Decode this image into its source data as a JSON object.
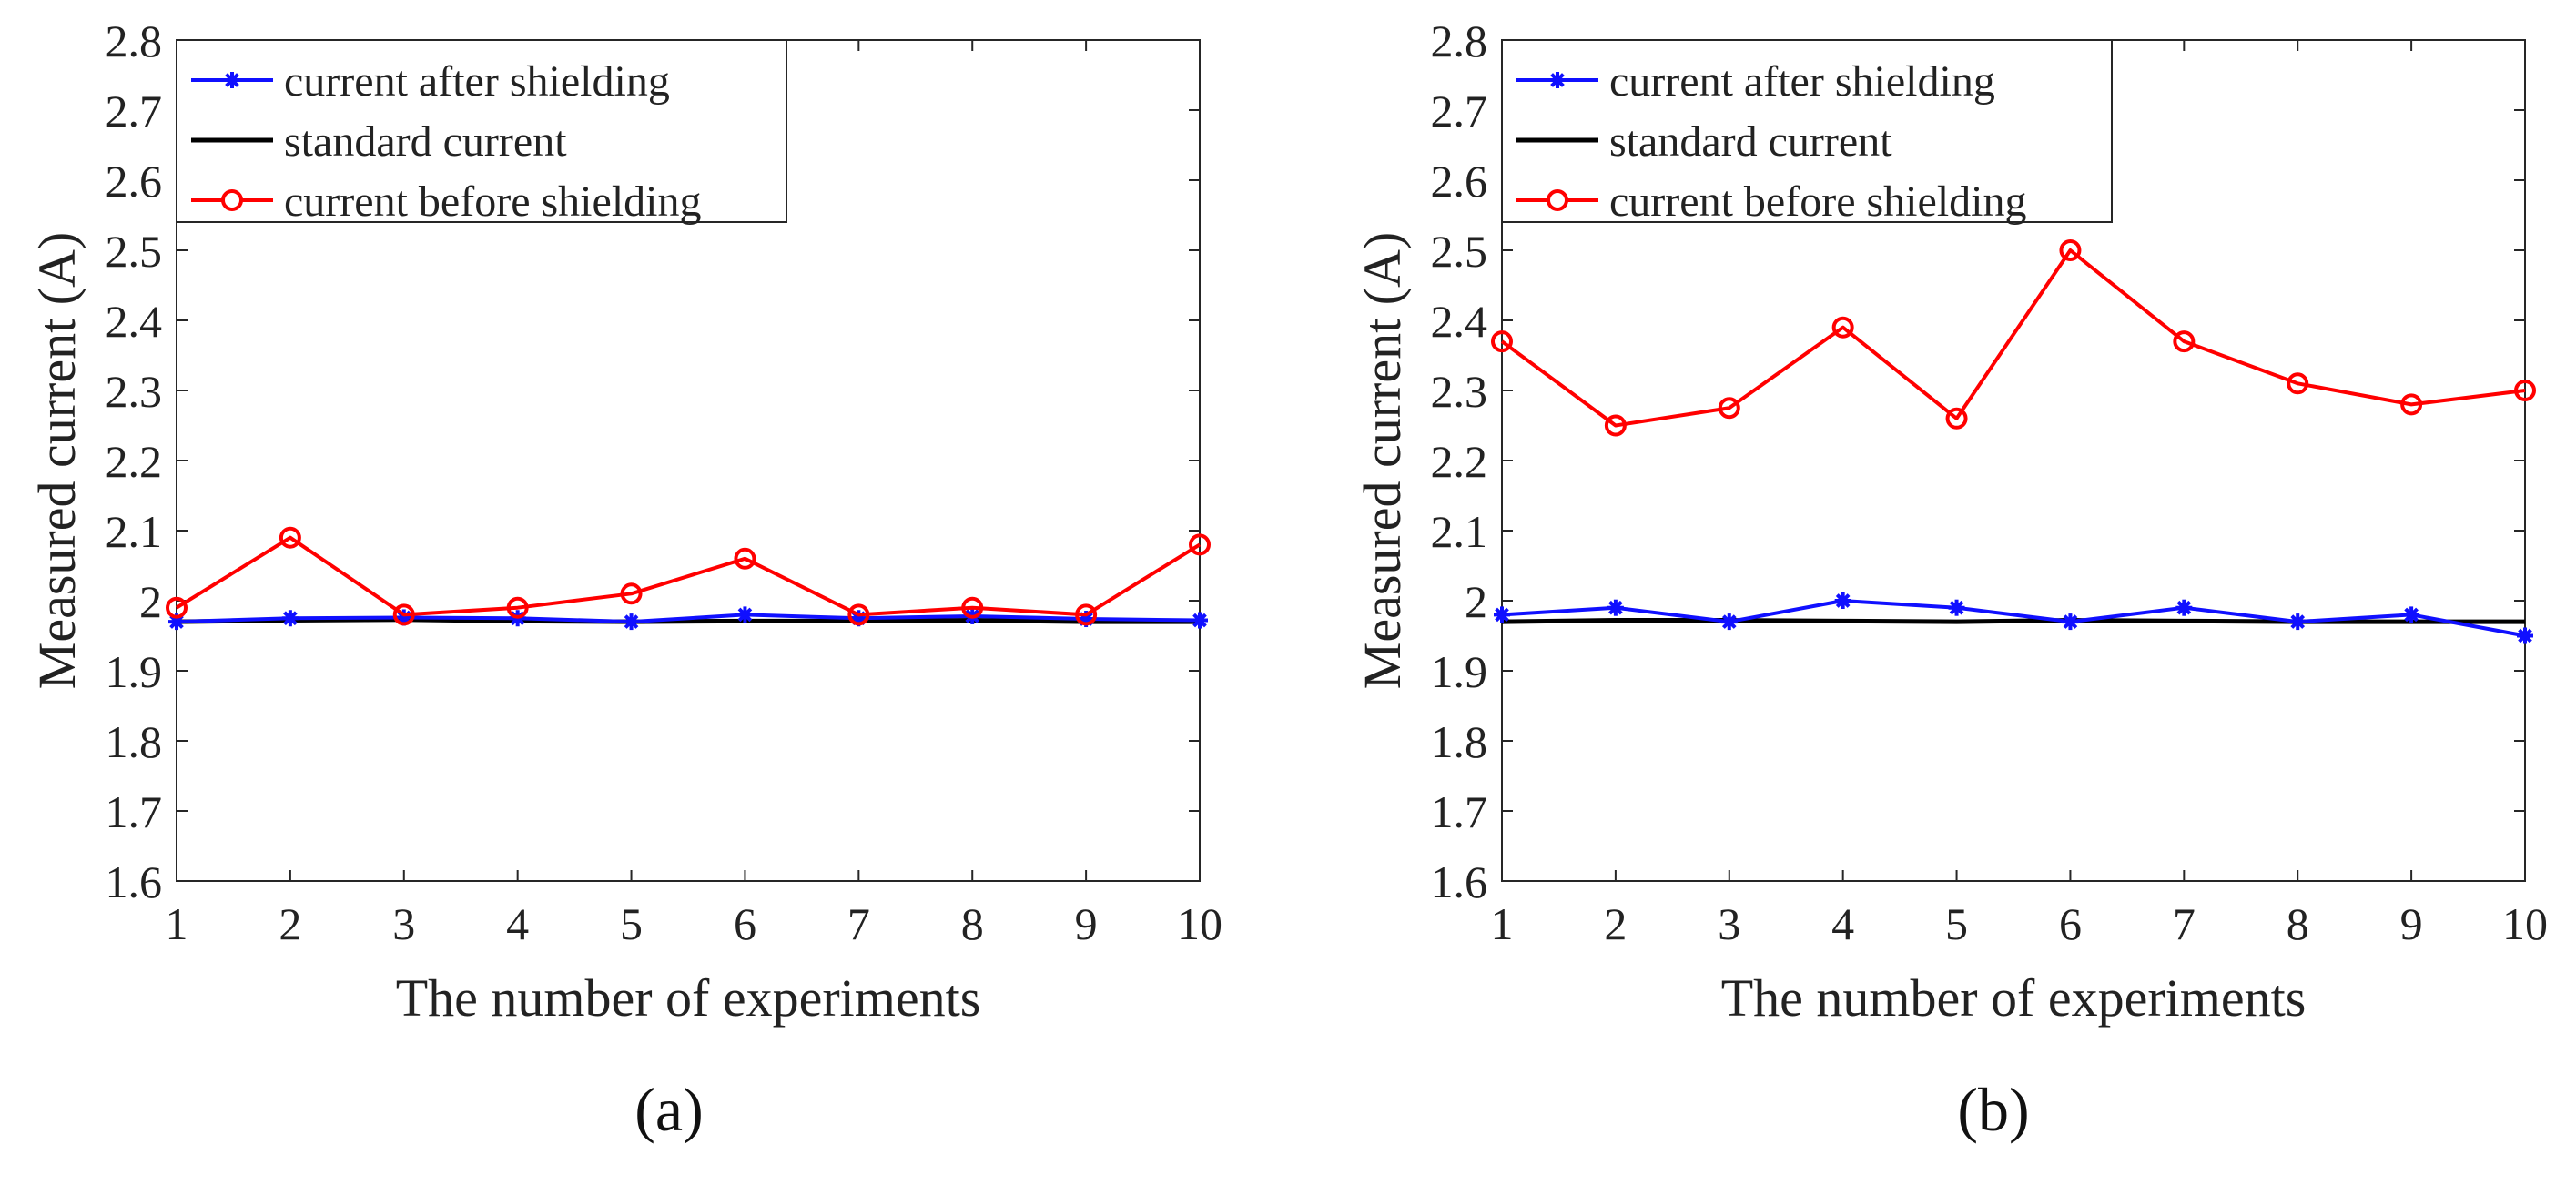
{
  "captions": [
    "(a)",
    "(b)"
  ],
  "colors": {
    "after": "#1010ff",
    "standard": "#000000",
    "before": "#ff0000"
  },
  "chart_data": [
    {
      "type": "line",
      "panel": "a",
      "xlabel": "The number of experiments",
      "ylabel": "Measured current (A)",
      "xlim": [
        1,
        10
      ],
      "ylim": [
        1.6,
        2.8
      ],
      "xticks": [
        1,
        2,
        3,
        4,
        5,
        6,
        7,
        8,
        9,
        10
      ],
      "yticks": [
        1.6,
        1.7,
        1.8,
        1.9,
        2,
        2.1,
        2.2,
        2.3,
        2.4,
        2.5,
        2.6,
        2.7,
        2.8
      ],
      "legend_position": "top-left",
      "x": [
        1,
        2,
        3,
        4,
        5,
        6,
        7,
        8,
        9,
        10
      ],
      "series": [
        {
          "name": "current after shielding",
          "key": "after",
          "marker": "asterisk",
          "values": [
            1.97,
            1.975,
            1.976,
            1.975,
            1.97,
            1.98,
            1.975,
            1.978,
            1.974,
            1.972
          ]
        },
        {
          "name": "standard current",
          "key": "standard",
          "marker": "none",
          "values": [
            1.97,
            1.972,
            1.973,
            1.971,
            1.97,
            1.971,
            1.971,
            1.972,
            1.97,
            1.97
          ]
        },
        {
          "name": "current before shielding",
          "key": "before",
          "marker": "circle",
          "values": [
            1.99,
            2.09,
            1.98,
            1.99,
            2.01,
            2.06,
            1.98,
            1.99,
            1.98,
            2.08
          ]
        }
      ]
    },
    {
      "type": "line",
      "panel": "b",
      "xlabel": "The number of experiments",
      "ylabel": "Measured current (A)",
      "xlim": [
        1,
        10
      ],
      "ylim": [
        1.6,
        2.8
      ],
      "xticks": [
        1,
        2,
        3,
        4,
        5,
        6,
        7,
        8,
        9,
        10
      ],
      "yticks": [
        1.6,
        1.7,
        1.8,
        1.9,
        2,
        2.1,
        2.2,
        2.3,
        2.4,
        2.5,
        2.6,
        2.7,
        2.8
      ],
      "legend_position": "top-left",
      "x": [
        1,
        2,
        3,
        4,
        5,
        6,
        7,
        8,
        9,
        10
      ],
      "series": [
        {
          "name": "current after shielding",
          "key": "after",
          "marker": "asterisk",
          "values": [
            1.98,
            1.99,
            1.97,
            2.0,
            1.99,
            1.97,
            1.99,
            1.97,
            1.98,
            1.95
          ]
        },
        {
          "name": "standard current",
          "key": "standard",
          "marker": "none",
          "values": [
            1.97,
            1.972,
            1.972,
            1.971,
            1.97,
            1.972,
            1.971,
            1.97,
            1.97,
            1.97
          ]
        },
        {
          "name": "current before shielding",
          "key": "before",
          "marker": "circle",
          "values": [
            2.37,
            2.25,
            2.275,
            2.39,
            2.26,
            2.5,
            2.37,
            2.31,
            2.28,
            2.3
          ]
        }
      ]
    }
  ]
}
